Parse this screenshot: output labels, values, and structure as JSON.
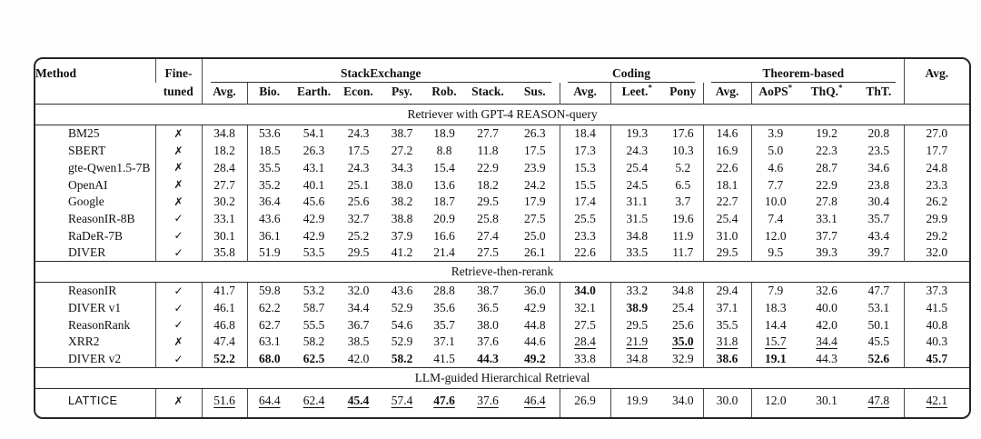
{
  "table": {
    "header": {
      "method": "Method",
      "fine_line1": "Fine-",
      "fine_line2": "tuned",
      "overall_avg": "Avg.",
      "groups": [
        {
          "label": "StackExchange",
          "span": 8
        },
        {
          "label": "Coding",
          "span": 3
        },
        {
          "label": "Theorem-based",
          "span": 4
        }
      ],
      "subcols": [
        "Avg.",
        "Bio.",
        "Earth.",
        "Econ.",
        "Psy.",
        "Rob.",
        "Stack.",
        "Sus.",
        "Avg.",
        "Leet.*",
        "Pony",
        "Avg.",
        "AoPS*",
        "ThQ.*",
        "ThT."
      ]
    },
    "sections": [
      {
        "title": "Retriever with GPT-4 REASON-query",
        "rows": [
          {
            "method": "BM25",
            "fine_tuned": "✗",
            "values": [
              "34.8",
              "53.6",
              "54.1",
              "24.3",
              "38.7",
              "18.9",
              "27.7",
              "26.3",
              "18.4",
              "19.3",
              "17.6",
              "14.6",
              "3.9",
              "19.2",
              "20.8",
              "27.0"
            ],
            "bold": [],
            "underline": []
          },
          {
            "method": "SBERT",
            "fine_tuned": "✗",
            "values": [
              "18.2",
              "18.5",
              "26.3",
              "17.5",
              "27.2",
              "8.8",
              "11.8",
              "17.5",
              "17.3",
              "24.3",
              "10.3",
              "16.9",
              "5.0",
              "22.3",
              "23.5",
              "17.7"
            ],
            "bold": [],
            "underline": []
          },
          {
            "method": "gte-Qwen1.5-7B",
            "fine_tuned": "✗",
            "values": [
              "28.4",
              "35.5",
              "43.1",
              "24.3",
              "34.3",
              "15.4",
              "22.9",
              "23.9",
              "15.3",
              "25.4",
              "5.2",
              "22.6",
              "4.6",
              "28.7",
              "34.6",
              "24.8"
            ],
            "bold": [],
            "underline": []
          },
          {
            "method": "OpenAI",
            "fine_tuned": "✗",
            "values": [
              "27.7",
              "35.2",
              "40.1",
              "25.1",
              "38.0",
              "13.6",
              "18.2",
              "24.2",
              "15.5",
              "24.5",
              "6.5",
              "18.1",
              "7.7",
              "22.9",
              "23.8",
              "23.3"
            ],
            "bold": [],
            "underline": []
          },
          {
            "method": "Google",
            "fine_tuned": "✗",
            "values": [
              "30.2",
              "36.4",
              "45.6",
              "25.6",
              "38.2",
              "18.7",
              "29.5",
              "17.9",
              "17.4",
              "31.1",
              "3.7",
              "22.7",
              "10.0",
              "27.8",
              "30.4",
              "26.2"
            ],
            "bold": [],
            "underline": []
          },
          {
            "method": "ReasonIR-8B",
            "fine_tuned": "✓",
            "values": [
              "33.1",
              "43.6",
              "42.9",
              "32.7",
              "38.8",
              "20.9",
              "25.8",
              "27.5",
              "25.5",
              "31.5",
              "19.6",
              "25.4",
              "7.4",
              "33.1",
              "35.7",
              "29.9"
            ],
            "bold": [],
            "underline": []
          },
          {
            "method": "RaDeR-7B",
            "fine_tuned": "✓",
            "values": [
              "30.1",
              "36.1",
              "42.9",
              "25.2",
              "37.9",
              "16.6",
              "27.4",
              "25.0",
              "23.3",
              "34.8",
              "11.9",
              "31.0",
              "12.0",
              "37.7",
              "43.4",
              "29.2"
            ],
            "bold": [],
            "underline": []
          },
          {
            "method": "DIVER",
            "fine_tuned": "✓",
            "values": [
              "35.8",
              "51.9",
              "53.5",
              "29.5",
              "41.2",
              "21.4",
              "27.5",
              "26.1",
              "22.6",
              "33.5",
              "11.7",
              "29.5",
              "9.5",
              "39.3",
              "39.7",
              "32.0"
            ],
            "bold": [],
            "underline": []
          }
        ]
      },
      {
        "title": "Retrieve-then-rerank",
        "rows": [
          {
            "method": "ReasonIR",
            "fine_tuned": "✓",
            "values": [
              "41.7",
              "59.8",
              "53.2",
              "32.0",
              "43.6",
              "28.8",
              "38.7",
              "36.0",
              "34.0",
              "33.2",
              "34.8",
              "29.4",
              "7.9",
              "32.6",
              "47.7",
              "37.3"
            ],
            "bold": [
              8
            ],
            "underline": []
          },
          {
            "method": "DIVER v1",
            "fine_tuned": "✓",
            "values": [
              "46.1",
              "62.2",
              "58.7",
              "34.4",
              "52.9",
              "35.6",
              "36.5",
              "42.9",
              "32.1",
              "38.9",
              "25.4",
              "37.1",
              "18.3",
              "40.0",
              "53.1",
              "41.5"
            ],
            "bold": [
              9
            ],
            "underline": []
          },
          {
            "method": "ReasonRank",
            "fine_tuned": "✓",
            "values": [
              "46.8",
              "62.7",
              "55.5",
              "36.7",
              "54.6",
              "35.7",
              "38.0",
              "44.8",
              "27.5",
              "29.5",
              "25.6",
              "35.5",
              "14.4",
              "42.0",
              "50.1",
              "40.8"
            ],
            "bold": [],
            "underline": []
          },
          {
            "method": "XRR2",
            "fine_tuned": "✗",
            "values": [
              "47.4",
              "63.1",
              "58.2",
              "38.5",
              "52.9",
              "37.1",
              "37.6",
              "44.6",
              "28.4",
              "21.9",
              "35.0",
              "31.8",
              "15.7",
              "34.4",
              "45.5",
              "40.3"
            ],
            "bold": [
              10
            ],
            "underline": [
              8,
              9,
              10,
              11,
              12,
              13
            ]
          },
          {
            "method": "DIVER v2",
            "fine_tuned": "✓",
            "values": [
              "52.2",
              "68.0",
              "62.5",
              "42.0",
              "58.2",
              "41.5",
              "44.3",
              "49.2",
              "33.8",
              "34.8",
              "32.9",
              "38.6",
              "19.1",
              "44.3",
              "52.6",
              "45.7"
            ],
            "bold": [
              0,
              1,
              2,
              4,
              6,
              7,
              11,
              12,
              14,
              15
            ],
            "underline": []
          }
        ]
      },
      {
        "title": "LLM-guided Hierarchical Retrieval",
        "rows": [
          {
            "method": "LATTICE",
            "fine_tuned": "✗",
            "method_sans": true,
            "values": [
              "51.6",
              "64.4",
              "62.4",
              "45.4",
              "57.4",
              "47.6",
              "37.6",
              "46.4",
              "26.9",
              "19.9",
              "34.0",
              "30.0",
              "12.0",
              "30.1",
              "47.8",
              "42.1"
            ],
            "bold": [
              3,
              5
            ],
            "underline": [
              0,
              1,
              2,
              3,
              4,
              5,
              6,
              7,
              14,
              15
            ]
          }
        ]
      }
    ]
  }
}
